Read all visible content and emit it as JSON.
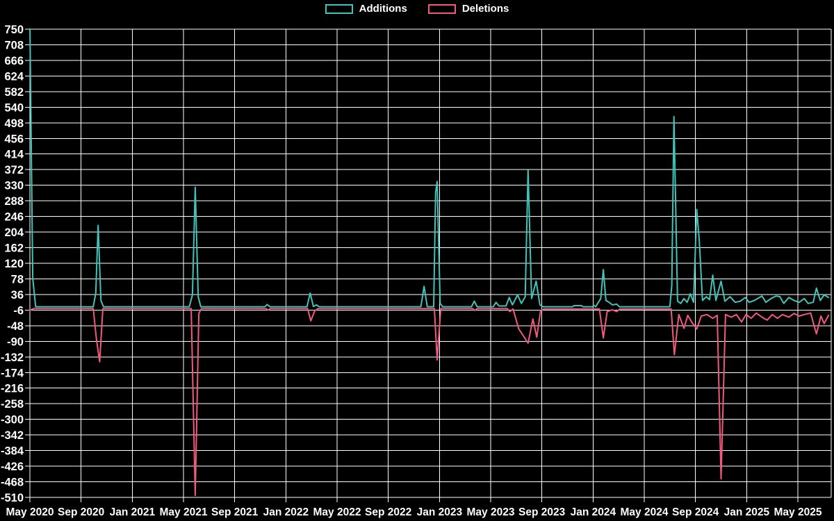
{
  "legend": {
    "items": [
      {
        "label": "Additions",
        "color": "#3fc5ba"
      },
      {
        "label": "Deletions",
        "color": "#f4587d"
      }
    ]
  },
  "chart_data": {
    "type": "line",
    "title": "",
    "background_color": "#000000",
    "grid_color": "#ffffff",
    "text_color": "#ffffff",
    "grid": true,
    "legend_position": "top-center",
    "x_axis": {
      "unit": "months since May 2020",
      "months_per_labeled_tick": 4,
      "tick_labels": [
        "May 2020",
        "Sep 2020",
        "Jan 2021",
        "May 2021",
        "Sep 2021",
        "Jan 2022",
        "May 2022",
        "Sep 2022",
        "Jan 2023",
        "May 2023",
        "Sep 2023",
        "Jan 2024",
        "May 2024",
        "Sep 2024",
        "Jan 2025",
        "May 2025"
      ]
    },
    "y_axis": {
      "max": 750,
      "min": -510,
      "tick_step": 42,
      "tick_values": [
        750,
        708,
        666,
        624,
        582,
        540,
        498,
        456,
        414,
        372,
        330,
        288,
        246,
        204,
        162,
        120,
        78,
        36,
        -6,
        -48,
        -90,
        -132,
        -174,
        -216,
        -258,
        -300,
        -342,
        -384,
        -426,
        -468,
        -510
      ],
      "tick_labels": [
        "750",
        "708",
        "666",
        "624",
        "582",
        "540",
        "498",
        "456",
        "414",
        "372",
        "330",
        "288",
        "246",
        "204",
        "162",
        "120",
        "78",
        "36",
        "-6",
        "-48",
        "-90",
        "-132",
        "-174",
        "-216",
        "-258",
        "-300",
        "-342",
        "-384",
        "-426",
        "-468",
        "-510"
      ]
    },
    "series": [
      {
        "name": "Additions",
        "color": "#3fc5ba",
        "points": [
          [
            0,
            765
          ],
          [
            0.22,
            80
          ],
          [
            0.45,
            3
          ],
          [
            4.95,
            3
          ],
          [
            5.15,
            40
          ],
          [
            5.33,
            222
          ],
          [
            5.55,
            20
          ],
          [
            5.75,
            3
          ],
          [
            12.45,
            3
          ],
          [
            12.7,
            35
          ],
          [
            12.92,
            325
          ],
          [
            13.15,
            30
          ],
          [
            13.35,
            3
          ],
          [
            18.35,
            3
          ],
          [
            18.55,
            9
          ],
          [
            18.75,
            3
          ],
          [
            21.65,
            3
          ],
          [
            21.9,
            40
          ],
          [
            22.15,
            4
          ],
          [
            22.4,
            8
          ],
          [
            22.6,
            3
          ],
          [
            30.55,
            3
          ],
          [
            30.8,
            58
          ],
          [
            31.05,
            3
          ],
          [
            31.55,
            3
          ],
          [
            31.7,
            310
          ],
          [
            31.82,
            340
          ],
          [
            32.05,
            12
          ],
          [
            32.25,
            3
          ],
          [
            34.5,
            3
          ],
          [
            34.72,
            18
          ],
          [
            34.95,
            3
          ],
          [
            36.2,
            3
          ],
          [
            36.42,
            15
          ],
          [
            36.65,
            5
          ],
          [
            37.2,
            5
          ],
          [
            37.45,
            28
          ],
          [
            37.7,
            8
          ],
          [
            38.1,
            35
          ],
          [
            38.4,
            12
          ],
          [
            38.7,
            30
          ],
          [
            38.92,
            370
          ],
          [
            39.2,
            25
          ],
          [
            39.55,
            72
          ],
          [
            39.85,
            8
          ],
          [
            40.1,
            3
          ],
          [
            42.4,
            3
          ],
          [
            42.5,
            6
          ],
          [
            43.1,
            6
          ],
          [
            43.2,
            3
          ],
          [
            43.95,
            3
          ],
          [
            44.05,
            7
          ],
          [
            44.2,
            3
          ],
          [
            44.6,
            25
          ],
          [
            44.8,
            103
          ],
          [
            45.0,
            20
          ],
          [
            45.25,
            15
          ],
          [
            45.5,
            8
          ],
          [
            45.85,
            10
          ],
          [
            46.05,
            3
          ],
          [
            50.0,
            3
          ],
          [
            50.15,
            60
          ],
          [
            50.32,
            515
          ],
          [
            50.6,
            18
          ],
          [
            50.85,
            12
          ],
          [
            51.1,
            25
          ],
          [
            51.35,
            15
          ],
          [
            51.6,
            38
          ],
          [
            51.85,
            15
          ],
          [
            52.1,
            265
          ],
          [
            52.3,
            180
          ],
          [
            52.55,
            20
          ],
          [
            52.85,
            30
          ],
          [
            53.1,
            22
          ],
          [
            53.35,
            88
          ],
          [
            53.6,
            20
          ],
          [
            54.0,
            72
          ],
          [
            54.3,
            18
          ],
          [
            54.7,
            30
          ],
          [
            55.1,
            15
          ],
          [
            55.5,
            18
          ],
          [
            55.9,
            28
          ],
          [
            56.2,
            15
          ],
          [
            56.6,
            20
          ],
          [
            57.2,
            32
          ],
          [
            57.5,
            15
          ],
          [
            57.9,
            25
          ],
          [
            58.3,
            32
          ],
          [
            58.6,
            30
          ],
          [
            58.9,
            12
          ],
          [
            59.3,
            28
          ],
          [
            59.7,
            20
          ],
          [
            60.1,
            15
          ],
          [
            60.5,
            25
          ],
          [
            60.8,
            12
          ],
          [
            61.2,
            15
          ],
          [
            61.45,
            53
          ],
          [
            61.75,
            20
          ],
          [
            62.05,
            35
          ],
          [
            62.4,
            28
          ]
        ]
      },
      {
        "name": "Deletions",
        "color": "#f4587d",
        "points": [
          [
            0,
            -6
          ],
          [
            0.3,
            -2
          ],
          [
            4.95,
            -2
          ],
          [
            5.2,
            -85
          ],
          [
            5.45,
            -145
          ],
          [
            5.7,
            -2
          ],
          [
            12.6,
            -2
          ],
          [
            12.92,
            -505
          ],
          [
            13.2,
            -15
          ],
          [
            13.4,
            -2
          ],
          [
            18.45,
            -2
          ],
          [
            18.6,
            -6
          ],
          [
            18.8,
            -2
          ],
          [
            21.7,
            -2
          ],
          [
            21.95,
            -35
          ],
          [
            22.25,
            -8
          ],
          [
            22.5,
            -2
          ],
          [
            31.6,
            -2
          ],
          [
            31.82,
            -140
          ],
          [
            32.1,
            -2
          ],
          [
            34.6,
            -2
          ],
          [
            34.75,
            -7
          ],
          [
            34.95,
            -2
          ],
          [
            37.3,
            -2
          ],
          [
            37.5,
            -10
          ],
          [
            37.75,
            -3
          ],
          [
            38.2,
            -57
          ],
          [
            38.55,
            -75
          ],
          [
            38.92,
            -95
          ],
          [
            39.3,
            -30
          ],
          [
            39.6,
            -79
          ],
          [
            39.9,
            -8
          ],
          [
            40.15,
            -3
          ],
          [
            44.5,
            -3
          ],
          [
            44.8,
            -81
          ],
          [
            45.1,
            -10
          ],
          [
            45.5,
            -5
          ],
          [
            45.85,
            -10
          ],
          [
            46.1,
            -3
          ],
          [
            50.1,
            -3
          ],
          [
            50.35,
            -126
          ],
          [
            50.7,
            -18
          ],
          [
            51.1,
            -55
          ],
          [
            51.4,
            -20
          ],
          [
            51.7,
            -38
          ],
          [
            52.1,
            -57
          ],
          [
            52.45,
            -22
          ],
          [
            52.9,
            -18
          ],
          [
            53.35,
            -28
          ],
          [
            53.7,
            -20
          ],
          [
            54.0,
            -460
          ],
          [
            54.35,
            -18
          ],
          [
            54.8,
            -25
          ],
          [
            55.2,
            -18
          ],
          [
            55.6,
            -38
          ],
          [
            55.95,
            -18
          ],
          [
            56.35,
            -28
          ],
          [
            56.75,
            -14
          ],
          [
            57.2,
            -25
          ],
          [
            57.6,
            -33
          ],
          [
            58.0,
            -18
          ],
          [
            58.4,
            -28
          ],
          [
            58.8,
            -18
          ],
          [
            59.3,
            -25
          ],
          [
            59.7,
            -15
          ],
          [
            60.1,
            -22
          ],
          [
            60.5,
            -18
          ],
          [
            61.0,
            -14
          ],
          [
            61.45,
            -70
          ],
          [
            61.8,
            -22
          ],
          [
            62.05,
            -42
          ],
          [
            62.4,
            -20
          ]
        ]
      }
    ]
  }
}
